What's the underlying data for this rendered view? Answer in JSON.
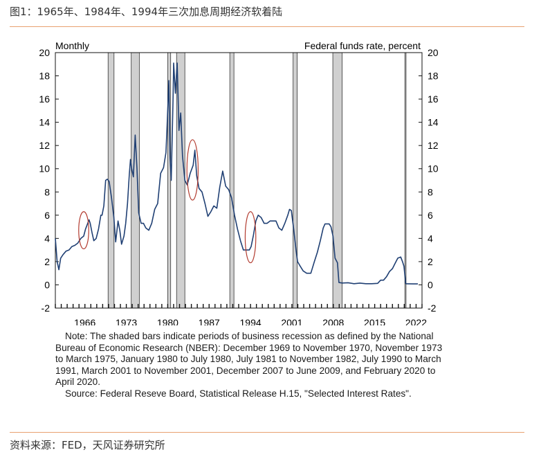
{
  "figure_title": "图1：1965年、1984年、1994年三次加息周期经济软着陆",
  "source_text": "资料来源：FED，天风证券研究所",
  "note_text": "Note: The shaded bars indicate periods of business recession as defined by the National Bureau of Economic Research (NBER): December 1969 to November 1970, November 1973 to March 1975, January 1980 to July 1980, July 1981 to November 1982, July 1990 to March 1991, March 2001 to November 2001, December 2007 to June 2009, and February 2020 to April 2020.",
  "source_note": "Source: Federal Reseve Board, Statistical Release H.15, \"Selected Interest Rates\".",
  "colors": {
    "line": "#1f3f73",
    "recession": "#d0d0d0",
    "circle": "#b23a2e",
    "rule": "#e8a070"
  },
  "chart_data": {
    "type": "line",
    "title_left": "Monthly",
    "title_right": "Federal funds rate, percent",
    "xlim": [
      1961,
      2023
    ],
    "ylim": [
      -2,
      20
    ],
    "x_ticks": [
      "1966",
      "1973",
      "1980",
      "1987",
      "1994",
      "2001",
      "2008",
      "2015",
      "2022"
    ],
    "y_ticks": [
      "-2",
      "0",
      "2",
      "4",
      "6",
      "8",
      "10",
      "12",
      "14",
      "16",
      "18",
      "20"
    ],
    "recessions": [
      {
        "label": "December 1969 to November 1970",
        "start": 1969.92,
        "end": 1970.92
      },
      {
        "label": "November 1973 to March 1975",
        "start": 1973.83,
        "end": 1975.2
      },
      {
        "label": "January 1980 to July 1980",
        "start": 1980.0,
        "end": 1980.5
      },
      {
        "label": "July 1981 to November 1982",
        "start": 1981.5,
        "end": 1982.9
      },
      {
        "label": "July 1990 to March 1991",
        "start": 1990.5,
        "end": 1991.2
      },
      {
        "label": "March 2001 to November 2001",
        "start": 2001.2,
        "end": 2001.9
      },
      {
        "label": "December 2007 to June 2009",
        "start": 2007.92,
        "end": 2009.5
      },
      {
        "label": "February 2020 to April 2020",
        "start": 2020.1,
        "end": 2020.3
      }
    ],
    "highlight_circles": [
      {
        "label": "1965",
        "x": 1965.8,
        "y": 4.7,
        "rx": 0.85,
        "ry": 1.6
      },
      {
        "label": "1984",
        "x": 1984.2,
        "y": 9.9,
        "rx": 0.95,
        "ry": 2.6
      },
      {
        "label": "1994",
        "x": 1994.0,
        "y": 4.1,
        "rx": 0.9,
        "ry": 2.2
      }
    ],
    "series": [
      {
        "points": [
          [
            1961.0,
            4.0
          ],
          [
            1961.3,
            2.0
          ],
          [
            1961.6,
            1.3
          ],
          [
            1961.9,
            2.3
          ],
          [
            1962.3,
            2.6
          ],
          [
            1962.8,
            2.9
          ],
          [
            1963.3,
            3.0
          ],
          [
            1963.8,
            3.3
          ],
          [
            1964.3,
            3.4
          ],
          [
            1964.8,
            3.6
          ],
          [
            1965.3,
            4.0
          ],
          [
            1965.8,
            4.2
          ],
          [
            1966.1,
            4.8
          ],
          [
            1966.4,
            5.2
          ],
          [
            1966.7,
            5.6
          ],
          [
            1966.9,
            5.3
          ],
          [
            1967.2,
            4.5
          ],
          [
            1967.5,
            3.8
          ],
          [
            1967.9,
            4.0
          ],
          [
            1968.3,
            4.8
          ],
          [
            1968.7,
            6.0
          ],
          [
            1968.9,
            6.0
          ],
          [
            1969.2,
            6.8
          ],
          [
            1969.5,
            9.0
          ],
          [
            1969.8,
            9.1
          ],
          [
            1970.1,
            8.9
          ],
          [
            1970.5,
            7.5
          ],
          [
            1970.9,
            5.8
          ],
          [
            1971.2,
            3.7
          ],
          [
            1971.6,
            5.5
          ],
          [
            1971.9,
            4.7
          ],
          [
            1972.2,
            3.5
          ],
          [
            1972.6,
            4.2
          ],
          [
            1972.9,
            5.3
          ],
          [
            1973.2,
            7.0
          ],
          [
            1973.5,
            9.5
          ],
          [
            1973.7,
            10.8
          ],
          [
            1973.9,
            10.0
          ],
          [
            1974.2,
            9.3
          ],
          [
            1974.5,
            12.9
          ],
          [
            1974.8,
            10.0
          ],
          [
            1975.1,
            6.2
          ],
          [
            1975.5,
            5.3
          ],
          [
            1975.9,
            5.3
          ],
          [
            1976.3,
            4.9
          ],
          [
            1976.8,
            4.7
          ],
          [
            1977.3,
            5.3
          ],
          [
            1977.8,
            6.5
          ],
          [
            1978.3,
            7.0
          ],
          [
            1978.8,
            9.6
          ],
          [
            1979.3,
            10.1
          ],
          [
            1979.7,
            11.4
          ],
          [
            1979.9,
            13.8
          ],
          [
            1980.2,
            17.6
          ],
          [
            1980.4,
            11.0
          ],
          [
            1980.6,
            9.0
          ],
          [
            1980.9,
            15.9
          ],
          [
            1981.0,
            19.1
          ],
          [
            1981.3,
            16.5
          ],
          [
            1981.6,
            19.1
          ],
          [
            1981.9,
            13.3
          ],
          [
            1982.2,
            14.8
          ],
          [
            1982.5,
            11.1
          ],
          [
            1982.9,
            9.0
          ],
          [
            1983.3,
            8.6
          ],
          [
            1983.8,
            9.6
          ],
          [
            1984.3,
            10.3
          ],
          [
            1984.6,
            11.6
          ],
          [
            1984.9,
            9.4
          ],
          [
            1985.3,
            8.3
          ],
          [
            1985.8,
            8.0
          ],
          [
            1986.3,
            7.0
          ],
          [
            1986.8,
            5.9
          ],
          [
            1987.3,
            6.3
          ],
          [
            1987.8,
            6.8
          ],
          [
            1988.3,
            6.6
          ],
          [
            1988.8,
            8.4
          ],
          [
            1989.3,
            9.8
          ],
          [
            1989.8,
            8.5
          ],
          [
            1990.3,
            8.2
          ],
          [
            1990.8,
            7.5
          ],
          [
            1991.3,
            6.0
          ],
          [
            1991.8,
            4.8
          ],
          [
            1992.3,
            3.8
          ],
          [
            1992.8,
            3.0
          ],
          [
            1993.3,
            3.0
          ],
          [
            1993.8,
            3.0
          ],
          [
            1994.1,
            3.3
          ],
          [
            1994.5,
            4.3
          ],
          [
            1994.9,
            5.5
          ],
          [
            1995.3,
            6.0
          ],
          [
            1995.8,
            5.8
          ],
          [
            1996.3,
            5.3
          ],
          [
            1996.8,
            5.3
          ],
          [
            1997.3,
            5.5
          ],
          [
            1997.8,
            5.5
          ],
          [
            1998.3,
            5.5
          ],
          [
            1998.8,
            4.9
          ],
          [
            1999.3,
            4.7
          ],
          [
            1999.8,
            5.3
          ],
          [
            2000.3,
            6.0
          ],
          [
            2000.6,
            6.5
          ],
          [
            2000.9,
            6.4
          ],
          [
            2001.3,
            4.8
          ],
          [
            2001.7,
            3.0
          ],
          [
            2001.95,
            2.0
          ],
          [
            2002.3,
            1.7
          ],
          [
            2002.9,
            1.2
          ],
          [
            2003.5,
            1.0
          ],
          [
            2004.2,
            1.0
          ],
          [
            2004.8,
            2.0
          ],
          [
            2005.3,
            2.8
          ],
          [
            2005.8,
            3.8
          ],
          [
            2006.3,
            4.9
          ],
          [
            2006.6,
            5.25
          ],
          [
            2007.3,
            5.25
          ],
          [
            2007.6,
            5.0
          ],
          [
            2007.95,
            4.2
          ],
          [
            2008.3,
            2.3
          ],
          [
            2008.7,
            1.9
          ],
          [
            2008.95,
            0.2
          ],
          [
            2009.5,
            0.16
          ],
          [
            2010.5,
            0.18
          ],
          [
            2011.5,
            0.1
          ],
          [
            2012.5,
            0.15
          ],
          [
            2013.5,
            0.1
          ],
          [
            2014.5,
            0.1
          ],
          [
            2015.5,
            0.13
          ],
          [
            2016.0,
            0.4
          ],
          [
            2016.5,
            0.4
          ],
          [
            2017.0,
            0.7
          ],
          [
            2017.5,
            1.15
          ],
          [
            2018.0,
            1.4
          ],
          [
            2018.5,
            1.9
          ],
          [
            2018.9,
            2.3
          ],
          [
            2019.4,
            2.4
          ],
          [
            2019.7,
            2.0
          ],
          [
            2019.95,
            1.6
          ],
          [
            2020.25,
            0.1
          ],
          [
            2020.6,
            0.09
          ],
          [
            2021.5,
            0.08
          ],
          [
            2022.0,
            0.08
          ],
          [
            2022.3,
            0.08
          ]
        ]
      }
    ]
  }
}
